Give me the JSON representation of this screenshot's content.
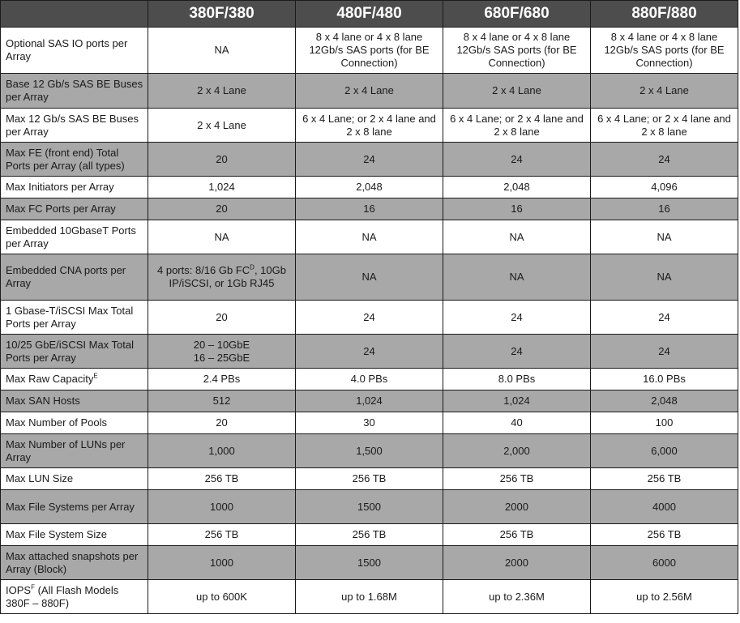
{
  "columns": [
    "380F/380",
    "480F/480",
    "680F/680",
    "880F/880"
  ],
  "rows": [
    {
      "label": "Optional SAS IO ports per Array",
      "values": [
        "NA",
        "8 x 4 lane or 4 x 8 lane 12Gb/s SAS ports (for BE Connection)",
        "8 x 4 lane or 4 x 8 lane 12Gb/s SAS ports (for BE Connection)",
        "8 x 4 lane or 4 x 8 lane 12Gb/s SAS ports (for BE Connection)"
      ]
    },
    {
      "label": "Base 12 Gb/s SAS BE Buses per Array",
      "values": [
        "2 x 4 Lane",
        "2 x 4 Lane",
        "2 x 4 Lane",
        "2 x 4 Lane"
      ]
    },
    {
      "label": "Max 12 Gb/s SAS BE Buses per Array",
      "values": [
        "2 x 4 Lane",
        "6 x 4 Lane; or 2 x 4 lane and 2 x 8 lane",
        "6 x 4 Lane; or 2 x 4 lane and 2 x 8 lane",
        "6 x 4 Lane; or 2 x 4 lane and 2 x 8 lane"
      ]
    },
    {
      "label": "Max FE (front end) Total Ports per Array (all types)",
      "values": [
        "20",
        "24",
        "24",
        "24"
      ]
    },
    {
      "label": "Max Initiators per Array",
      "values": [
        "1,024",
        "2,048",
        "2,048",
        "4,096"
      ]
    },
    {
      "label": "Max FC Ports per Array",
      "values": [
        "20",
        "16",
        "16",
        "16"
      ]
    },
    {
      "label": "Embedded 10GbaseT Ports per Array",
      "values": [
        "NA",
        "NA",
        "NA",
        "NA"
      ]
    },
    {
      "label": "Embedded CNA ports per Array",
      "values": [
        "4 ports: 8/16 Gb FC^D, 10Gb IP/iSCSI, or 1Gb RJ45",
        "NA",
        "NA",
        "NA"
      ]
    },
    {
      "label": "1 Gbase-T/iSCSI Max Total Ports per Array",
      "values": [
        "20",
        "24",
        "24",
        "24"
      ]
    },
    {
      "label": "10/25 GbE/iSCSI Max Total Ports per Array",
      "values": [
        "20 – 10GbE\n16 – 25GbE",
        "24",
        "24",
        "24"
      ]
    },
    {
      "label": "Max Raw Capacity^E",
      "values": [
        "2.4 PBs",
        "4.0 PBs",
        "8.0 PBs",
        "16.0 PBs"
      ]
    },
    {
      "label": "Max SAN Hosts",
      "values": [
        "512",
        "1,024",
        "1,024",
        "2,048"
      ]
    },
    {
      "label": "Max Number of Pools",
      "values": [
        "20",
        "30",
        "40",
        "100"
      ]
    },
    {
      "label": "Max Number of LUNs per Array",
      "values": [
        "1,000",
        "1,500",
        "2,000",
        "6,000"
      ]
    },
    {
      "label": "Max LUN Size",
      "values": [
        "256 TB",
        "256 TB",
        "256 TB",
        "256 TB"
      ]
    },
    {
      "label": "Max File Systems per Array",
      "values": [
        "1000",
        "1500",
        "2000",
        "4000"
      ]
    },
    {
      "label": "Max File System Size",
      "values": [
        "256 TB",
        "256 TB",
        "256 TB",
        "256 TB"
      ]
    },
    {
      "label": "Max attached snapshots per Array (Block)",
      "values": [
        "1000",
        "1500",
        "2000",
        "6000"
      ]
    },
    {
      "label": "IOPS^F (All Flash Models 380F – 880F)",
      "values": [
        "up to 600K",
        "up to 1.68M",
        "up to 2.36M",
        "up to 2.56M"
      ]
    }
  ]
}
